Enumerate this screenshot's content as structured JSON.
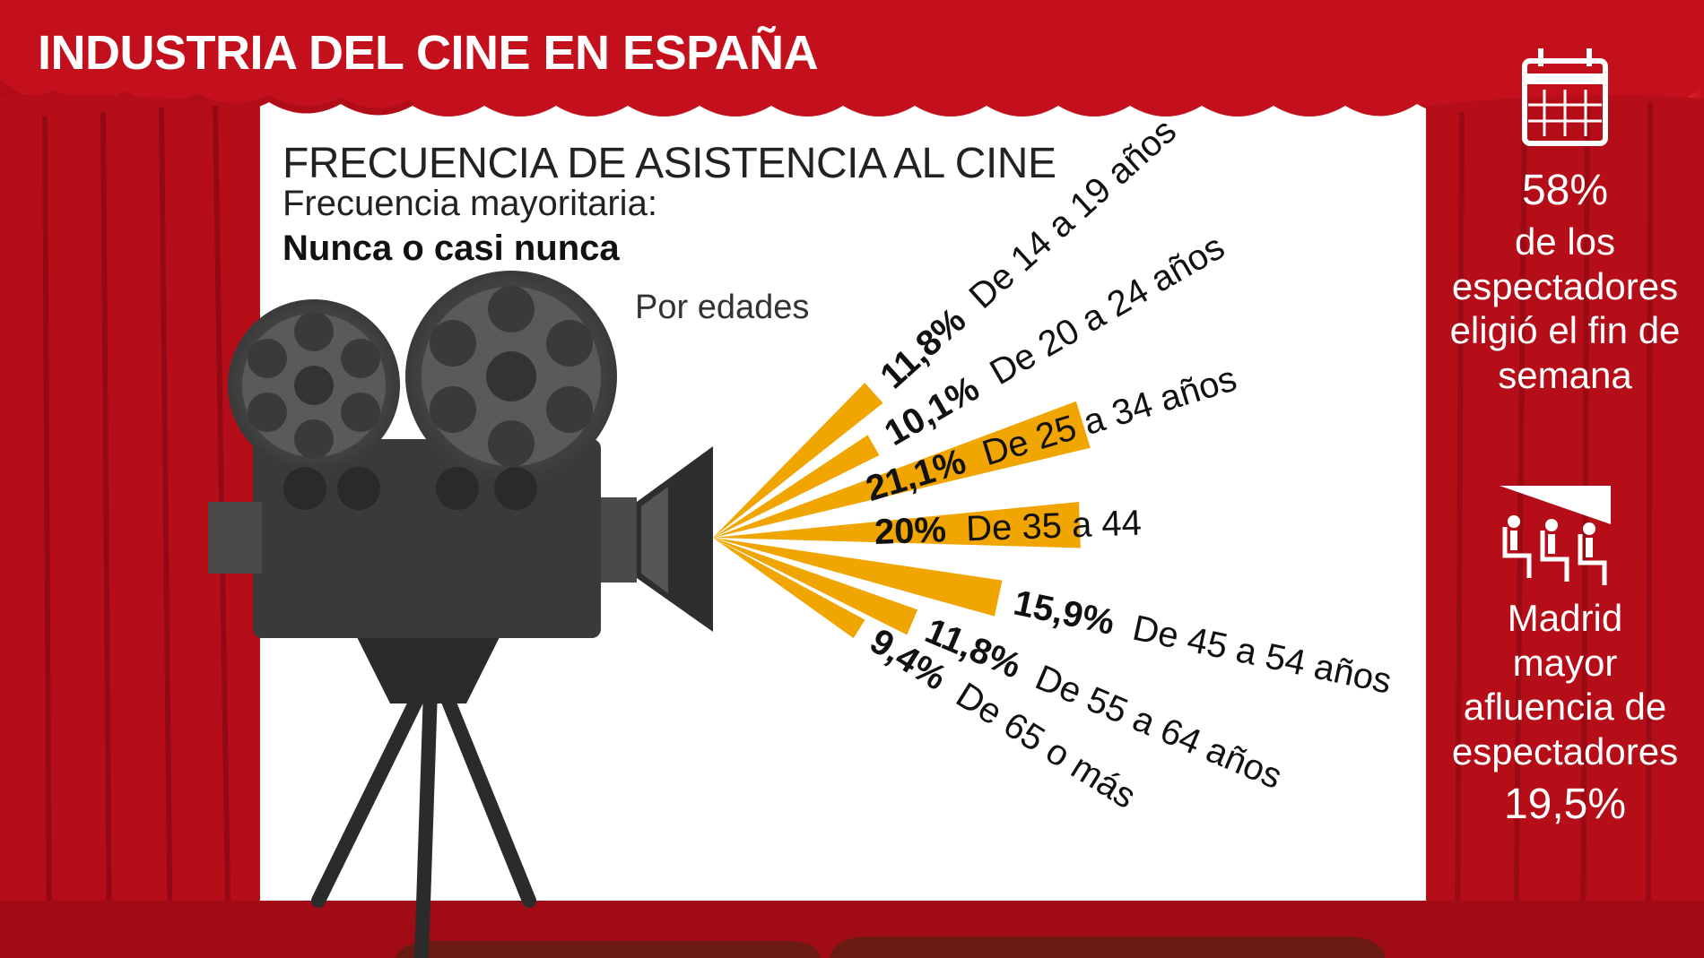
{
  "header": {
    "title": "INDUSTRIA DEL CINE EN ESPAÑA"
  },
  "chart_data": {
    "type": "bar",
    "title": "FRECUENCIA DE ASISTENCIA AL CINE",
    "subtitle": "Frecuencia mayoritaria:",
    "highlight": "Nunca o casi nunca",
    "group_label": "Por edades",
    "categories": [
      "De 14 a 19 años",
      "De 20 a 24 años",
      "De 25 a 34 años",
      "De 35 a 44",
      "De 45 a 54 años",
      "De 55 a 64 años",
      "De 65 o más"
    ],
    "values": [
      11.8,
      10.1,
      21.1,
      20,
      15.9,
      11.8,
      9.4
    ],
    "value_labels": [
      "11,8%",
      "10,1%",
      "21,1%",
      "20%",
      "15,9%",
      "11,8%",
      "9,4%"
    ],
    "unit": "%",
    "colors": {
      "bar": "#f0a500",
      "highlight_bars": [
        2,
        3
      ]
    }
  },
  "sidebar": {
    "stat1": {
      "icon": "calendar-icon",
      "value": "58%",
      "lines": [
        "de los",
        "espectadores",
        "eligió el fin de",
        "semana"
      ]
    },
    "stat2": {
      "icon": "cinema-seats-icon",
      "lines": [
        "Madrid",
        "mayor",
        "afluencia de",
        "espectadores"
      ],
      "value": "19,5%"
    }
  },
  "colors": {
    "curtain": "#c4101c",
    "curtain_dark": "#8c0710",
    "screen": "#ffffff",
    "accent": "#f0a500",
    "camera": "#2e2e2e"
  }
}
